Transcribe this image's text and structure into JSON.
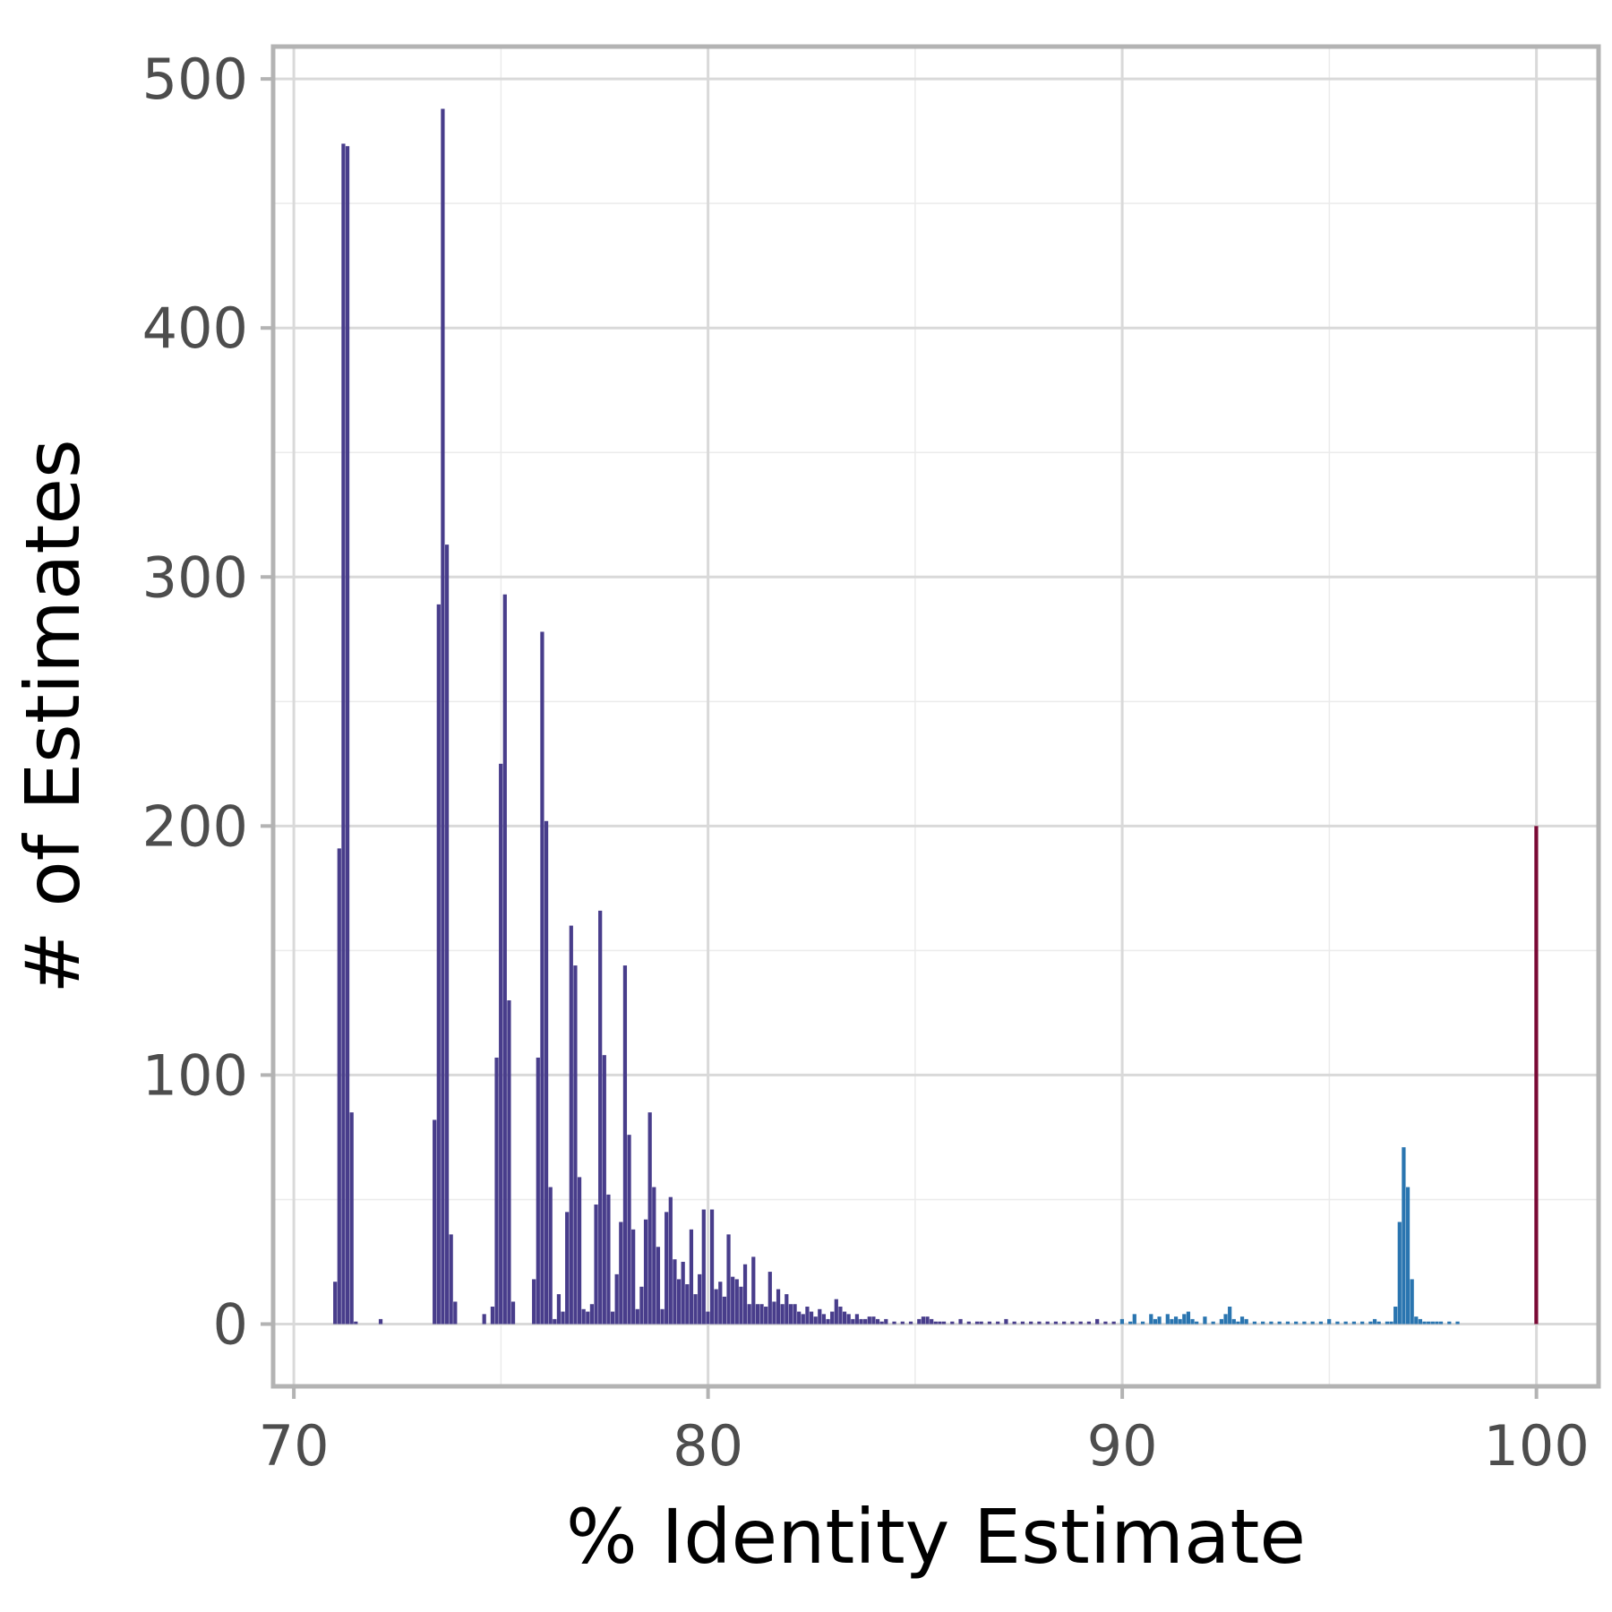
{
  "chart_data": {
    "type": "bar",
    "xlabel": "% Identity Estimate",
    "ylabel": "# of Estimates",
    "xlim": [
      69.5,
      101.5
    ],
    "ylim": [
      -25,
      513
    ],
    "xticks": [
      70,
      80,
      90,
      100
    ],
    "yticks": [
      0,
      100,
      200,
      300,
      400,
      500
    ],
    "grid": true,
    "bin_width": 0.1,
    "colors": {
      "low": "#483d8b",
      "mid": "#2a75b0",
      "exact": "#7a0a35"
    },
    "series": [
      {
        "color_key": "low",
        "x": [
          71.0,
          71.1,
          71.2,
          71.3,
          71.4,
          71.5,
          72.1,
          73.4,
          73.5,
          73.6,
          73.7,
          73.8,
          73.9,
          74.6,
          74.8,
          74.9,
          75.0,
          75.1,
          75.2,
          75.3,
          75.8,
          75.9,
          76.0,
          76.1,
          76.2,
          76.3,
          76.4,
          76.5,
          76.6,
          76.7,
          76.8,
          76.9,
          77.0,
          77.1,
          77.2,
          77.3,
          77.4,
          77.5,
          77.6,
          77.7,
          77.8,
          77.9,
          78.0,
          78.1,
          78.2,
          78.3,
          78.4,
          78.5,
          78.6,
          78.7,
          78.8,
          78.9,
          79.0,
          79.1,
          79.2,
          79.3,
          79.4,
          79.5,
          79.6,
          79.7,
          79.8,
          79.9,
          80.0,
          80.1,
          80.2,
          80.3,
          80.4,
          80.5,
          80.6,
          80.7,
          80.8,
          80.9,
          81.0,
          81.1,
          81.2,
          81.3,
          81.4,
          81.5,
          81.6,
          81.7,
          81.8,
          81.9,
          82.0,
          82.1,
          82.2,
          82.3,
          82.4,
          82.5,
          82.6,
          82.7,
          82.8,
          82.9,
          83.0,
          83.1,
          83.2,
          83.3,
          83.4,
          83.5,
          83.6,
          83.7,
          83.8,
          83.9,
          84.0,
          84.1,
          84.2,
          84.3,
          84.5,
          84.7,
          84.9,
          85.1,
          85.2,
          85.3,
          85.4,
          85.5,
          85.6,
          85.7,
          85.9,
          86.1,
          86.3,
          86.5,
          86.6,
          86.8,
          87.0,
          87.2,
          87.4,
          87.6,
          87.8,
          88.0,
          88.2,
          88.4,
          88.6,
          88.8,
          89.0,
          89.2,
          89.4,
          89.6,
          89.8
        ],
        "values": [
          17,
          191,
          474,
          473,
          85,
          1,
          2,
          82,
          289,
          488,
          313,
          36,
          9,
          4,
          7,
          107,
          225,
          293,
          130,
          9,
          18,
          107,
          278,
          202,
          55,
          2,
          12,
          5,
          45,
          160,
          144,
          59,
          6,
          5,
          8,
          48,
          166,
          108,
          52,
          5,
          20,
          41,
          144,
          76,
          38,
          6,
          15,
          42,
          85,
          55,
          31,
          6,
          45,
          51,
          26,
          18,
          25,
          16,
          38,
          12,
          20,
          46,
          5,
          46,
          14,
          17,
          11,
          36,
          19,
          18,
          15,
          24,
          8,
          27,
          8,
          8,
          7,
          21,
          9,
          14,
          8,
          12,
          8,
          8,
          5,
          4,
          7,
          5,
          3,
          6,
          4,
          2,
          5,
          10,
          7,
          5,
          4,
          2,
          4,
          2,
          2,
          3,
          3,
          2,
          1,
          2,
          1,
          1,
          1,
          2,
          3,
          3,
          2,
          1,
          1,
          1,
          1,
          2,
          1,
          1,
          1,
          1,
          1,
          2,
          1,
          1,
          1,
          1,
          1,
          1,
          1,
          1,
          1,
          1,
          2,
          1,
          1
        ]
      },
      {
        "color_key": "mid",
        "x": [
          90.0,
          90.2,
          90.3,
          90.5,
          90.7,
          90.8,
          90.9,
          91.1,
          91.2,
          91.3,
          91.4,
          91.5,
          91.6,
          91.7,
          91.8,
          92.0,
          92.2,
          92.4,
          92.5,
          92.6,
          92.7,
          92.8,
          92.9,
          93.0,
          93.2,
          93.4,
          93.6,
          93.8,
          94.0,
          94.2,
          94.4,
          94.6,
          94.8,
          95.0,
          95.2,
          95.4,
          95.6,
          95.8,
          96.0,
          96.1,
          96.2,
          96.4,
          96.5,
          96.6,
          96.7,
          96.8,
          96.9,
          97.0,
          97.1,
          97.2,
          97.3,
          97.4,
          97.5,
          97.6,
          97.7,
          97.9,
          98.1
        ],
        "values": [
          2,
          1,
          4,
          1,
          4,
          2,
          3,
          4,
          2,
          3,
          2,
          4,
          5,
          2,
          1,
          3,
          1,
          2,
          4,
          7,
          2,
          1,
          3,
          2,
          1,
          1,
          1,
          1,
          1,
          1,
          1,
          1,
          1,
          2,
          1,
          1,
          1,
          1,
          1,
          2,
          1,
          1,
          1,
          7,
          41,
          71,
          55,
          18,
          3,
          2,
          1,
          1,
          1,
          1,
          1,
          1,
          1
        ]
      },
      {
        "color_key": "exact",
        "x": [
          100.0
        ],
        "values": [
          200
        ]
      }
    ]
  }
}
